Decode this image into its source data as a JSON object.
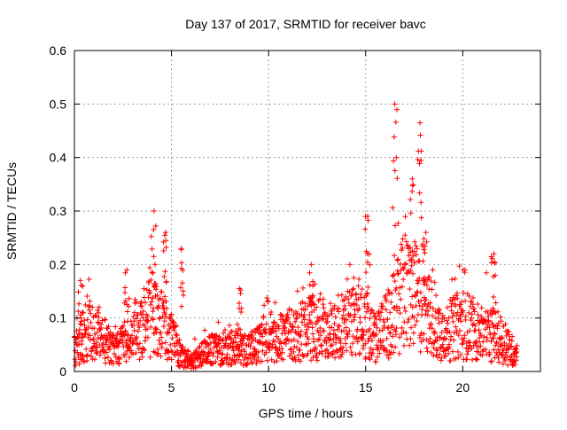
{
  "chart_data": {
    "type": "scatter",
    "title": "Day 137 of 2017, SRMTID for receiver bavc",
    "xlabel": "GPS time / hours",
    "ylabel": "SRMTID / TECUs",
    "xlim": [
      0,
      24
    ],
    "ylim": [
      0,
      0.6
    ],
    "xticks": [
      0,
      5,
      10,
      15,
      20
    ],
    "yticks": [
      0,
      0.1,
      0.2,
      0.3,
      0.4,
      0.5,
      0.6
    ],
    "xtick_labels": [
      "0",
      "5",
      "10",
      "15",
      "20"
    ],
    "ytick_labels": [
      "0",
      "0.1",
      "0.2",
      "0.3",
      "0.4",
      "0.5",
      "0.6"
    ],
    "grid": true,
    "marker": "+",
    "color": "#ff0000",
    "envelope": {
      "description": "approximate typical SRMTID level by hour; many points scattered around this level",
      "x": [
        0,
        0.5,
        1,
        1.5,
        2,
        2.5,
        3,
        3.5,
        4,
        4.5,
        5,
        5.5,
        6,
        6.5,
        7,
        7.5,
        8,
        8.5,
        9,
        9.5,
        10,
        10.5,
        11,
        11.5,
        12,
        12.5,
        13,
        13.5,
        14,
        14.5,
        15,
        15.5,
        16,
        16.5,
        17,
        17.5,
        18,
        18.5,
        19,
        19.5,
        20,
        20.5,
        21,
        21.5,
        22,
        22.5,
        22.8
      ],
      "y": [
        0.04,
        0.07,
        0.08,
        0.06,
        0.04,
        0.05,
        0.07,
        0.09,
        0.1,
        0.09,
        0.06,
        0.03,
        0.02,
        0.03,
        0.04,
        0.04,
        0.05,
        0.04,
        0.04,
        0.05,
        0.06,
        0.06,
        0.07,
        0.07,
        0.08,
        0.08,
        0.07,
        0.08,
        0.09,
        0.1,
        0.09,
        0.06,
        0.08,
        0.11,
        0.15,
        0.14,
        0.12,
        0.09,
        0.07,
        0.08,
        0.09,
        0.08,
        0.07,
        0.07,
        0.06,
        0.04,
        0.03
      ]
    },
    "peaks": [
      {
        "x": 0.3,
        "y": 0.17
      },
      {
        "x": 2.7,
        "y": 0.19
      },
      {
        "x": 4.1,
        "y": 0.3
      },
      {
        "x": 4.7,
        "y": 0.26
      },
      {
        "x": 5.5,
        "y": 0.23
      },
      {
        "x": 8.5,
        "y": 0.155
      },
      {
        "x": 12.2,
        "y": 0.2
      },
      {
        "x": 15.1,
        "y": 0.29
      },
      {
        "x": 16.5,
        "y": 0.5
      },
      {
        "x": 17.4,
        "y": 0.36
      },
      {
        "x": 17.8,
        "y": 0.465
      },
      {
        "x": 18.1,
        "y": 0.26
      },
      {
        "x": 21.6,
        "y": 0.22
      }
    ]
  }
}
